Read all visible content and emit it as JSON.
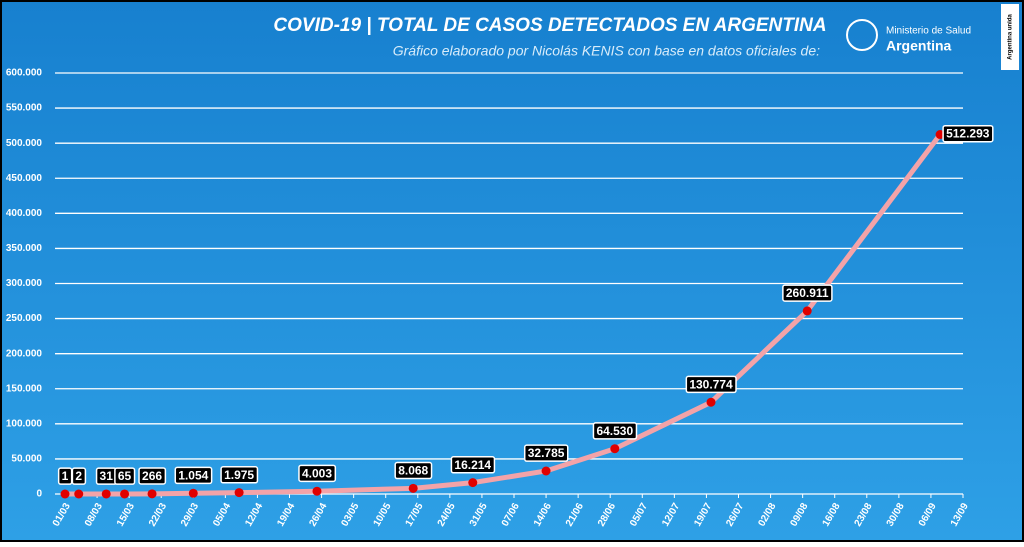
{
  "chart_data": {
    "type": "line",
    "title": "COVID-19  |  TOTAL DE CASOS DETECTADOS EN ARGENTINA",
    "subtitle": "Gráfico elaborado por Nicolás KENIS con base en datos oficiales de:",
    "logo_line1": "Ministerio de Salud",
    "logo_line2": "Argentina",
    "badge": "Argentina unida",
    "x": [
      0,
      3,
      9,
      13,
      19,
      28,
      38,
      55,
      76,
      89,
      105,
      120,
      141,
      162,
      191
    ],
    "series": [
      {
        "name": "Total de casos",
        "color": "#f3a3a8",
        "marker_color": "#e00000",
        "values": [
          1,
          2,
          31,
          65,
          266,
          1054,
          1975,
          4003,
          8068,
          16214,
          32785,
          64530,
          130774,
          260911,
          512293
        ],
        "value_labels": [
          "1",
          "2",
          "31",
          "65",
          "266",
          "1.054",
          "1.975",
          "4.003",
          "8.068",
          "16.214",
          "32.785",
          "64.530",
          "130.774",
          "260.911",
          "512.293"
        ]
      }
    ],
    "xlim": [
      0,
      196
    ],
    "xticks": [
      {
        "value": 0,
        "label": "01/03"
      },
      {
        "value": 7,
        "label": "08/03"
      },
      {
        "value": 14,
        "label": "15/03"
      },
      {
        "value": 21,
        "label": "22/03"
      },
      {
        "value": 28,
        "label": "29/03"
      },
      {
        "value": 35,
        "label": "05/04"
      },
      {
        "value": 42,
        "label": "12/04"
      },
      {
        "value": 49,
        "label": "19/04"
      },
      {
        "value": 56,
        "label": "26/04"
      },
      {
        "value": 63,
        "label": "03/05"
      },
      {
        "value": 70,
        "label": "10/05"
      },
      {
        "value": 77,
        "label": "17/05"
      },
      {
        "value": 84,
        "label": "24/05"
      },
      {
        "value": 91,
        "label": "31/05"
      },
      {
        "value": 98,
        "label": "07/06"
      },
      {
        "value": 105,
        "label": "14/06"
      },
      {
        "value": 112,
        "label": "21/06"
      },
      {
        "value": 119,
        "label": "28/06"
      },
      {
        "value": 126,
        "label": "05/07"
      },
      {
        "value": 133,
        "label": "12/07"
      },
      {
        "value": 140,
        "label": "19/07"
      },
      {
        "value": 147,
        "label": "26/07"
      },
      {
        "value": 154,
        "label": "02/08"
      },
      {
        "value": 161,
        "label": "09/08"
      },
      {
        "value": 168,
        "label": "16/08"
      },
      {
        "value": 175,
        "label": "23/08"
      },
      {
        "value": 182,
        "label": "30/08"
      },
      {
        "value": 189,
        "label": "06/09"
      },
      {
        "value": 196,
        "label": "13/09"
      }
    ],
    "ylim": [
      0,
      600000
    ],
    "yticks": [
      {
        "value": 0,
        "label": "0"
      },
      {
        "value": 50000,
        "label": "50.000"
      },
      {
        "value": 100000,
        "label": "100.000"
      },
      {
        "value": 150000,
        "label": "150.000"
      },
      {
        "value": 200000,
        "label": "200.000"
      },
      {
        "value": 250000,
        "label": "250.000"
      },
      {
        "value": 300000,
        "label": "300.000"
      },
      {
        "value": 350000,
        "label": "350.000"
      },
      {
        "value": 400000,
        "label": "400.000"
      },
      {
        "value": 450000,
        "label": "450.000"
      },
      {
        "value": 500000,
        "label": "500.000"
      },
      {
        "value": 550000,
        "label": "550.000"
      },
      {
        "value": 600000,
        "label": "600.000"
      }
    ],
    "grid": true
  }
}
